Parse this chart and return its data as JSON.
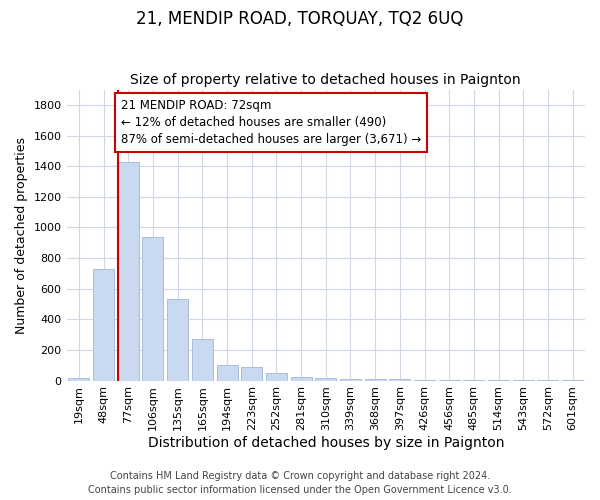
{
  "title": "21, MENDIP ROAD, TORQUAY, TQ2 6UQ",
  "subtitle": "Size of property relative to detached houses in Paignton",
  "xlabel": "Distribution of detached houses by size in Paignton",
  "ylabel": "Number of detached properties",
  "footer1": "Contains HM Land Registry data © Crown copyright and database right 2024.",
  "footer2": "Contains public sector information licensed under the Open Government Licence v3.0.",
  "categories": [
    "19sqm",
    "48sqm",
    "77sqm",
    "106sqm",
    "135sqm",
    "165sqm",
    "194sqm",
    "223sqm",
    "252sqm",
    "281sqm",
    "310sqm",
    "339sqm",
    "368sqm",
    "397sqm",
    "426sqm",
    "456sqm",
    "485sqm",
    "514sqm",
    "543sqm",
    "572sqm",
    "601sqm"
  ],
  "values": [
    20,
    730,
    1430,
    935,
    530,
    270,
    100,
    88,
    48,
    25,
    20,
    10,
    10,
    8,
    5,
    5,
    5,
    5,
    5,
    5,
    5
  ],
  "bar_color": "#c8d9f0",
  "bar_edge_color": "#a8bedd",
  "property_line_bin": 2,
  "property_line_color": "#cc0000",
  "annotation_text_line1": "21 MENDIP ROAD: 72sqm",
  "annotation_text_line2": "← 12% of detached houses are smaller (490)",
  "annotation_text_line3": "87% of semi-detached houses are larger (3,671) →",
  "annotation_box_color": "#cc0000",
  "annotation_box_bg": "#ffffff",
  "ylim": [
    0,
    1900
  ],
  "yticks": [
    0,
    200,
    400,
    600,
    800,
    1000,
    1200,
    1400,
    1600,
    1800
  ],
  "bg_color": "#ffffff",
  "plot_bg_color": "#ffffff",
  "grid_color": "#d0d8e8",
  "title_fontsize": 12,
  "subtitle_fontsize": 10,
  "xlabel_fontsize": 10,
  "ylabel_fontsize": 9,
  "tick_fontsize": 8,
  "footer_fontsize": 7,
  "annotation_fontsize": 8.5
}
